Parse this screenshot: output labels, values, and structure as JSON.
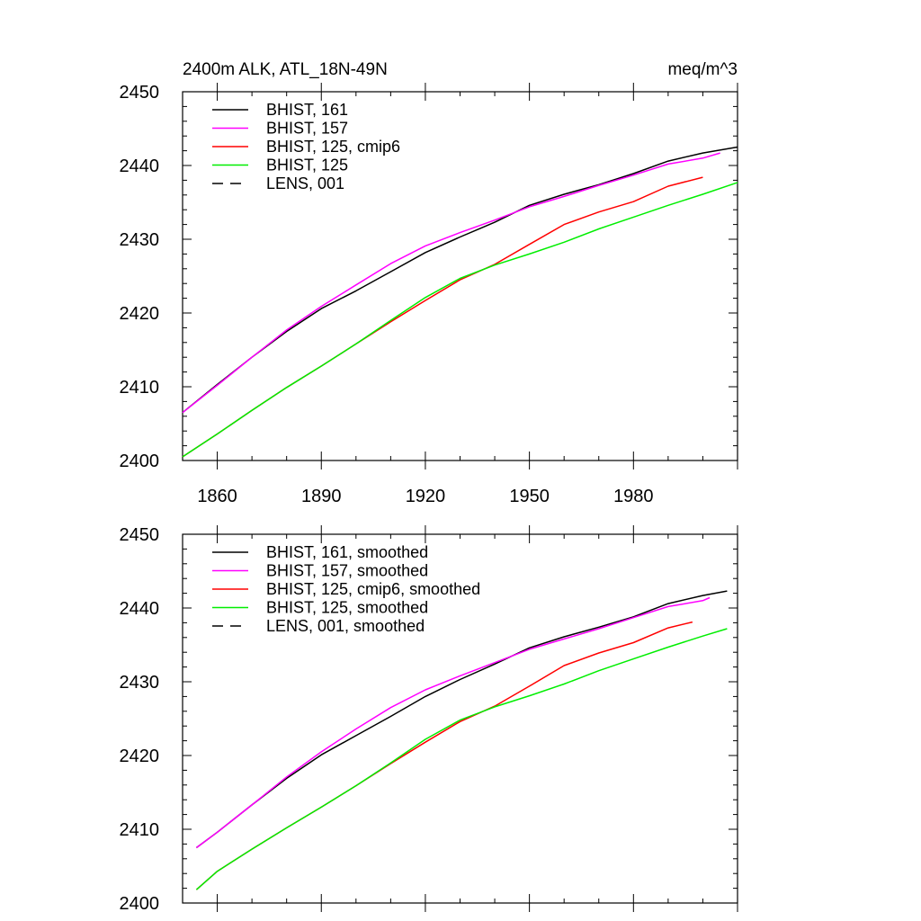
{
  "chart_data": [
    {
      "type": "line",
      "title": "2400m ALK, ATL_18N-49N",
      "units": "meq/m^3",
      "xlim": [
        1850,
        2010
      ],
      "ylim": [
        2400,
        2450
      ],
      "x_ticks": [
        1860,
        1890,
        1920,
        1950,
        1980
      ],
      "y_ticks": [
        2400,
        2410,
        2420,
        2430,
        2440,
        2450
      ],
      "legend_position": "top-left",
      "series": [
        {
          "name": "BHIST, 161",
          "color": "#000000",
          "dash": "solid",
          "x": [
            1850,
            1860,
            1870,
            1880,
            1890,
            1900,
            1910,
            1920,
            1930,
            1940,
            1950,
            1960,
            1970,
            1980,
            1990,
            2000,
            2010
          ],
          "y": [
            2406.5,
            2410.3,
            2414.0,
            2417.5,
            2420.6,
            2423.0,
            2425.6,
            2428.2,
            2430.3,
            2432.3,
            2434.6,
            2436.1,
            2437.4,
            2438.9,
            2440.6,
            2441.7,
            2442.5
          ]
        },
        {
          "name": "BHIST, 157",
          "color": "#ff00ff",
          "dash": "solid",
          "x": [
            1850,
            1860,
            1870,
            1880,
            1890,
            1900,
            1910,
            1920,
            1930,
            1940,
            1950,
            1960,
            1970,
            1980,
            1990,
            2000,
            2005
          ],
          "y": [
            2406.5,
            2410.2,
            2414.0,
            2417.7,
            2420.9,
            2423.8,
            2426.7,
            2429.1,
            2430.9,
            2432.6,
            2434.4,
            2435.8,
            2437.3,
            2438.7,
            2440.2,
            2441.0,
            2441.7
          ]
        },
        {
          "name": "BHIST, 125, cmip6",
          "color": "#ff0000",
          "dash": "solid",
          "x": [
            1850,
            1860,
            1870,
            1880,
            1890,
            1900,
            1910,
            1920,
            1930,
            1940,
            1950,
            1960,
            1970,
            1980,
            1990,
            2000
          ],
          "y": [
            2400.5,
            2403.6,
            2406.8,
            2409.9,
            2412.8,
            2415.8,
            2418.8,
            2421.7,
            2424.5,
            2426.6,
            2429.3,
            2432.0,
            2433.7,
            2435.1,
            2437.2,
            2438.4
          ]
        },
        {
          "name": "BHIST, 125",
          "color": "#00ee00",
          "dash": "solid",
          "x": [
            1850,
            1860,
            1870,
            1880,
            1890,
            1900,
            1910,
            1920,
            1930,
            1940,
            1950,
            1960,
            1970,
            1980,
            1990,
            2000,
            2010
          ],
          "y": [
            2400.5,
            2403.6,
            2406.8,
            2409.9,
            2412.8,
            2415.8,
            2419.0,
            2422.1,
            2424.7,
            2426.5,
            2428.0,
            2429.6,
            2431.4,
            2433.0,
            2434.6,
            2436.1,
            2437.7
          ]
        },
        {
          "name": "LENS, 001",
          "color": "#000000",
          "dash": "dashed",
          "x": [],
          "y": []
        }
      ]
    },
    {
      "type": "line",
      "title": "",
      "xlim": [
        1850,
        2010
      ],
      "ylim": [
        2400,
        2450
      ],
      "x_ticks": [
        1860,
        1890,
        1920,
        1950,
        1980
      ],
      "y_ticks": [
        2400,
        2410,
        2420,
        2430,
        2440,
        2450
      ],
      "legend_position": "top-left",
      "series": [
        {
          "name": "BHIST, 161, smoothed",
          "color": "#000000",
          "dash": "solid",
          "x": [
            1854,
            1860,
            1870,
            1880,
            1890,
            1900,
            1910,
            1920,
            1930,
            1940,
            1950,
            1960,
            1970,
            1980,
            1990,
            2000,
            2007
          ],
          "y": [
            2407.5,
            2409.6,
            2413.3,
            2416.9,
            2420.1,
            2422.7,
            2425.3,
            2428.0,
            2430.3,
            2432.4,
            2434.6,
            2436.1,
            2437.4,
            2438.8,
            2440.6,
            2441.7,
            2442.3
          ]
        },
        {
          "name": "BHIST, 157, smoothed",
          "color": "#ff00ff",
          "dash": "solid",
          "x": [
            1854,
            1860,
            1870,
            1880,
            1890,
            1900,
            1910,
            1920,
            1930,
            1940,
            1950,
            1960,
            1970,
            1980,
            1990,
            2000,
            2002
          ],
          "y": [
            2407.5,
            2409.6,
            2413.3,
            2417.1,
            2420.5,
            2423.6,
            2426.5,
            2428.9,
            2430.8,
            2432.6,
            2434.4,
            2435.8,
            2437.2,
            2438.7,
            2440.2,
            2441.0,
            2441.4
          ]
        },
        {
          "name": "BHIST, 125, cmip6, smoothed",
          "color": "#ff0000",
          "dash": "solid",
          "x": [
            1854,
            1860,
            1870,
            1880,
            1890,
            1900,
            1910,
            1920,
            1930,
            1940,
            1950,
            1960,
            1970,
            1980,
            1990,
            1997
          ],
          "y": [
            2401.8,
            2404.3,
            2407.3,
            2410.2,
            2413.0,
            2415.9,
            2418.9,
            2421.8,
            2424.6,
            2426.7,
            2429.4,
            2432.2,
            2433.9,
            2435.3,
            2437.3,
            2438.1
          ]
        },
        {
          "name": "BHIST, 125, smoothed",
          "color": "#00ee00",
          "dash": "solid",
          "x": [
            1854,
            1860,
            1870,
            1880,
            1890,
            1900,
            1910,
            1920,
            1930,
            1940,
            1950,
            1960,
            1970,
            1980,
            1990,
            2000,
            2007
          ],
          "y": [
            2401.8,
            2404.3,
            2407.3,
            2410.2,
            2413.0,
            2415.9,
            2419.0,
            2422.2,
            2424.8,
            2426.6,
            2428.1,
            2429.7,
            2431.5,
            2433.1,
            2434.7,
            2436.2,
            2437.2
          ]
        },
        {
          "name": "LENS, 001, smoothed",
          "color": "#000000",
          "dash": "dashed",
          "x": [],
          "y": []
        }
      ]
    }
  ]
}
